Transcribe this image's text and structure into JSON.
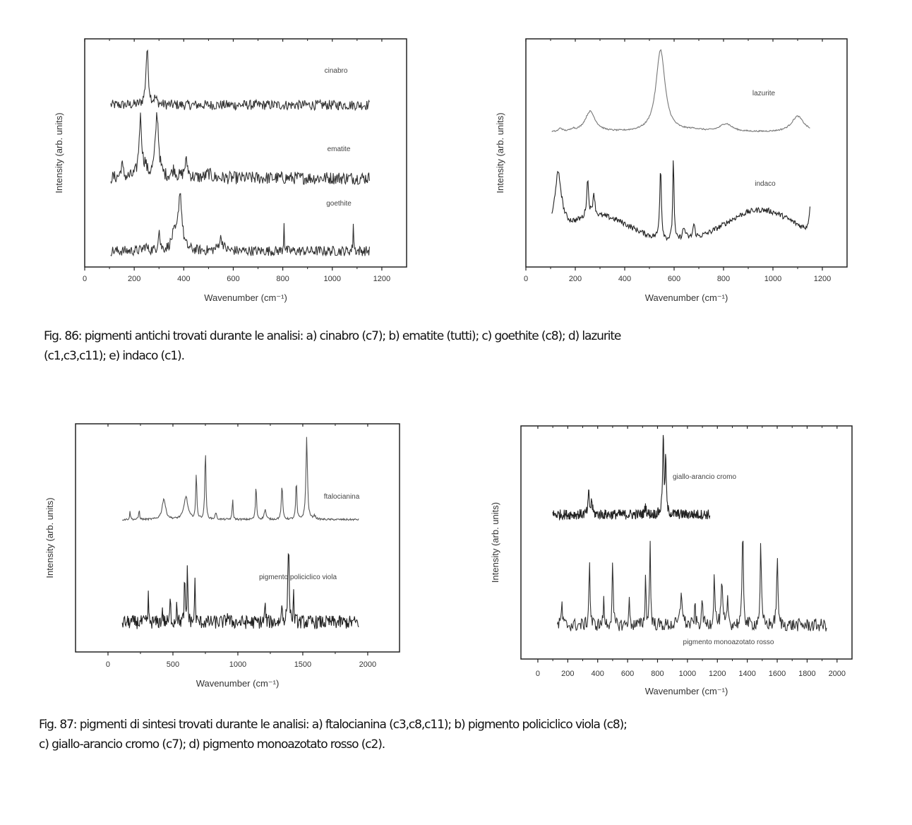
{
  "figures": [
    {
      "caption_lines": [
        "Fig. 86: pigmenti antichi trovati durante le analisi: a) cinabro (c7); b) ematite (tutti); c) goethite (c8); d) lazurite",
        "(c1,c3,c11); e) indaco (c1)."
      ]
    },
    {
      "caption_lines": [
        "Fig. 87: pigmenti di sintesi trovati durante le analisi: a) ftalocianina (c3,c8,c11); b) pigmento policiclico viola (c8);",
        "c) giallo-arancio cromo (c7); d) pigmento monoazotato rosso (c2)."
      ]
    }
  ],
  "chart_data": [
    {
      "type": "line",
      "xlabel": "Wavenumber (cm⁻¹)",
      "ylabel": "Intensity (arb. units)",
      "xlim": [
        0,
        1300
      ],
      "xticks": [
        0,
        200,
        400,
        600,
        800,
        1000,
        1200
      ],
      "ylim": [
        0,
        10
      ],
      "grid": false,
      "series": [
        {
          "name": "cinabro",
          "range": [
            105,
            1150
          ],
          "offset": 7.1,
          "noise": 0.22,
          "color": "#333333",
          "peaks": [
            [
              252,
              2.4,
              6
            ],
            [
              285,
              0.25,
              8
            ]
          ]
        },
        {
          "name": "ematite",
          "range": [
            105,
            1150
          ],
          "offset": 3.9,
          "noise": 0.28,
          "color": "#333333",
          "peaks": [
            [
              225,
              2.6,
              7
            ],
            [
              292,
              2.8,
              8
            ],
            [
              410,
              0.7,
              8
            ],
            [
              150,
              0.6,
              5
            ],
            [
              245,
              0.4,
              6
            ],
            [
              360,
              0.35,
              8
            ],
            [
              500,
              0.2,
              10
            ]
          ]
        },
        {
          "name": "goethite",
          "range": [
            105,
            1150
          ],
          "offset": 0.7,
          "noise": 0.22,
          "color": "#333333",
          "peaks": [
            [
              385,
              2.5,
              9
            ],
            [
              360,
              0.6,
              12
            ],
            [
              300,
              0.9,
              4
            ],
            [
              550,
              0.55,
              10
            ],
            [
              805,
              1.35,
              1.5
            ],
            [
              1085,
              1.35,
              1.5
            ],
            [
              245,
              0.2,
              8
            ]
          ]
        }
      ]
    },
    {
      "type": "line",
      "xlabel": "Wavenumber (cm⁻¹)",
      "ylabel": "Intensity (arb. units)",
      "xlim": [
        0,
        1300
      ],
      "xticks": [
        0,
        200,
        400,
        600,
        800,
        1000,
        1200
      ],
      "ylim": [
        0,
        10
      ],
      "grid": false,
      "series": [
        {
          "name": "lazurite",
          "range": [
            105,
            1150
          ],
          "offset": 5.9,
          "noise": 0.03,
          "color": "#777777",
          "peaks": [
            [
              545,
              3.6,
              22
            ],
            [
              260,
              0.9,
              25
            ],
            [
              1100,
              0.7,
              30
            ],
            [
              810,
              0.35,
              30
            ],
            [
              140,
              0.15,
              8
            ],
            [
              190,
              0.1,
              8
            ],
            [
              680,
              0.08,
              40
            ]
          ]
        },
        {
          "name": "indaco",
          "range": [
            105,
            1150
          ],
          "offset": 1.0,
          "noise": 0.12,
          "color": "#222222",
          "broad": [
            [
              950,
              1.5,
              200
            ],
            [
              300,
              1.2,
              180
            ]
          ],
          "peaks": [
            [
              130,
              2.6,
              18
            ],
            [
              250,
              1.6,
              5
            ],
            [
              275,
              1.0,
              5
            ],
            [
              545,
              3.2,
              4
            ],
            [
              597,
              3.7,
              3
            ],
            [
              640,
              0.5,
              8
            ],
            [
              680,
              0.6,
              5
            ],
            [
              1150,
              1.0,
              6
            ]
          ]
        }
      ]
    },
    {
      "type": "line",
      "xlabel": "Wavenumber (cm⁻¹)",
      "ylabel": "Intensity (arb. units)",
      "xlim": [
        -250,
        2245
      ],
      "xticks": [
        0,
        500,
        1000,
        1500,
        2000
      ],
      "ylim": [
        0,
        10
      ],
      "grid": false,
      "series": [
        {
          "name": "ftalocianina",
          "range": [
            110,
            1930
          ],
          "offset": 5.8,
          "noise": 0.04,
          "color": "#555555",
          "peaks": [
            [
              1530,
              3.6,
              7
            ],
            [
              750,
              3.1,
              5
            ],
            [
              680,
              2.0,
              5
            ],
            [
              1450,
              1.7,
              5
            ],
            [
              1340,
              1.5,
              6
            ],
            [
              1140,
              1.5,
              5
            ],
            [
              960,
              0.9,
              4
            ],
            [
              600,
              1.0,
              18
            ],
            [
              430,
              0.9,
              16
            ],
            [
              240,
              0.45,
              4
            ],
            [
              170,
              0.35,
              4
            ],
            [
              1210,
              0.45,
              8
            ],
            [
              830,
              0.3,
              6
            ],
            [
              1590,
              0.15,
              10
            ]
          ]
        },
        {
          "name": "pigmento policiclico viola",
          "range": [
            110,
            1930
          ],
          "offset": 1.3,
          "noise": 0.3,
          "color": "#222222",
          "peaks": [
            [
              1390,
              3.4,
              6
            ],
            [
              612,
              3.0,
              3
            ],
            [
              590,
              2.3,
              3
            ],
            [
              670,
              2.0,
              3
            ],
            [
              310,
              1.4,
              2
            ],
            [
              480,
              1.2,
              3
            ],
            [
              530,
              1.2,
              3
            ],
            [
              420,
              0.7,
              3
            ],
            [
              1210,
              0.8,
              4
            ],
            [
              1340,
              0.8,
              4
            ],
            [
              1430,
              1.2,
              3
            ],
            [
              920,
              0.4,
              6
            ]
          ]
        }
      ]
    },
    {
      "type": "line",
      "xlabel": "Wavenumber (cm⁻¹)",
      "ylabel": "Intensity (arb. units)",
      "xlim": [
        -113,
        2100
      ],
      "xticks": [
        0,
        200,
        400,
        600,
        800,
        1000,
        1200,
        1400,
        1600,
        1800,
        2000
      ],
      "ylim": [
        0,
        10
      ],
      "grid": false,
      "series": [
        {
          "name": "giallo-arancio cromo",
          "range": [
            100,
            1150
          ],
          "offset": 6.2,
          "noise": 0.22,
          "color": "#222222",
          "peaks": [
            [
              838,
              3.4,
              5
            ],
            [
              855,
              2.4,
              4
            ],
            [
              340,
              0.9,
              5
            ],
            [
              360,
              0.6,
              5
            ],
            [
              720,
              0.4,
              5
            ]
          ]
        },
        {
          "name": "pigmento monoazotato rosso",
          "range": [
            130,
            1930
          ],
          "offset": 1.45,
          "noise": 0.28,
          "color": "#333333",
          "peaks": [
            [
              750,
              3.7,
              4
            ],
            [
              1370,
              4.1,
              5
            ],
            [
              345,
              3.0,
              4
            ],
            [
              500,
              2.6,
              4
            ],
            [
              1490,
              3.4,
              5
            ],
            [
              1600,
              2.9,
              5
            ],
            [
              1180,
              2.2,
              5
            ],
            [
              1230,
              1.7,
              6
            ],
            [
              960,
              1.4,
              8
            ],
            [
              720,
              2.0,
              4
            ],
            [
              1050,
              0.9,
              4
            ],
            [
              1100,
              1.2,
              4
            ],
            [
              1270,
              1.2,
              4
            ],
            [
              610,
              1.1,
              4
            ],
            [
              440,
              1.0,
              4
            ],
            [
              160,
              1.0,
              4
            ]
          ]
        }
      ]
    }
  ]
}
